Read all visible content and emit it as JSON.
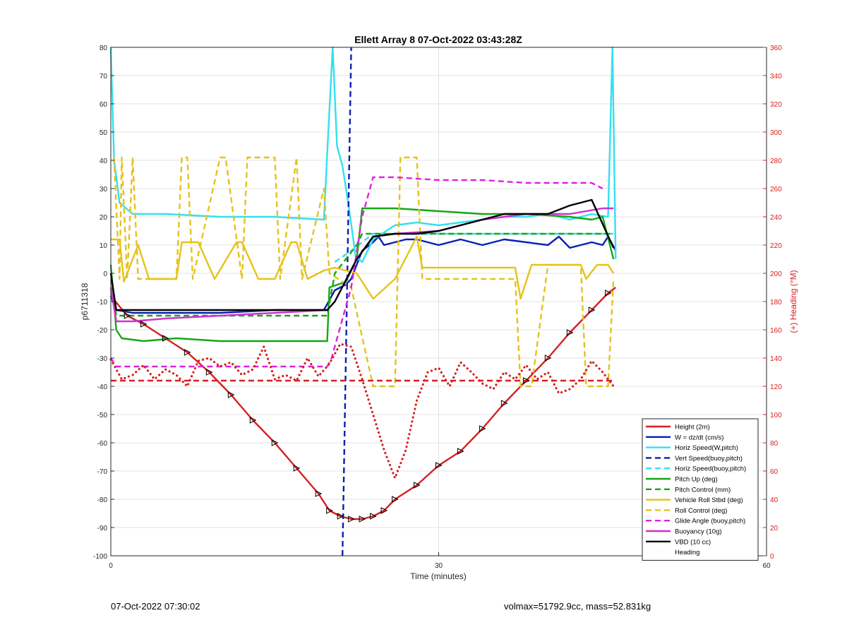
{
  "chart_data": {
    "type": "line",
    "title": "Ellett Array 8 07-Oct-2022 03:43:28Z",
    "xlabel": "Time (minutes)",
    "ylabel": "p6711318",
    "y2label": "(+) Heading (°M)",
    "xlim": [
      0,
      60
    ],
    "ylim": [
      -100,
      80
    ],
    "y2lim": [
      0,
      360
    ],
    "xticks": [
      "0",
      "30",
      "60"
    ],
    "yticks": [
      "80",
      "70",
      "60",
      "50",
      "40",
      "30",
      "20",
      "10",
      "0",
      "-10",
      "-20",
      "-30",
      "-40",
      "-50",
      "-60",
      "-70",
      "-80",
      "-90",
      "-100"
    ],
    "y2ticks": [
      "360",
      "340",
      "320",
      "300",
      "280",
      "260",
      "240",
      "220",
      "200",
      "180",
      "160",
      "140",
      "120",
      "100",
      "80",
      "60",
      "40",
      "20",
      "0"
    ],
    "grid": true,
    "legend_position": "bottom-right",
    "colors": {
      "height": "#d62020",
      "w": "#0a1fb5",
      "horiz": "#33e0f0",
      "pitch": "#16a616",
      "roll": "#e6c21a",
      "glide": "#e020e0",
      "buoyancy": "#d030d0",
      "vbd": "#000000",
      "heading": "#d62020",
      "right_axis": "#d62020"
    },
    "series": [
      {
        "name": "Height (2m)",
        "axis": "left",
        "color": "#d62020",
        "style": "solid",
        "x": [
          0,
          1.5,
          3,
          5,
          7,
          9,
          11,
          13,
          15,
          17,
          19,
          20,
          21,
          22,
          23,
          24,
          25,
          26,
          28,
          30,
          32,
          34,
          36,
          38,
          40,
          42,
          44,
          45.5,
          46.2
        ],
        "y": [
          -8,
          -15,
          -18,
          -23,
          -28,
          -35,
          -43,
          -52,
          -60,
          -69,
          -78,
          -84,
          -86,
          -87,
          -87,
          -86,
          -84,
          -80,
          -75,
          -68,
          -63,
          -55,
          -46,
          -38,
          -30,
          -21,
          -13,
          -7,
          -5
        ]
      },
      {
        "name": "W = dz/dt (cm/s)",
        "axis": "left",
        "color": "#0a1fb5",
        "style": "solid",
        "x": [
          0,
          0.5,
          2,
          5,
          10,
          15,
          19.5,
          20.5,
          21.5,
          22,
          23,
          24,
          24.5,
          25,
          26,
          27,
          28,
          29,
          30,
          32,
          34,
          36,
          38,
          40,
          41,
          42,
          44,
          45,
          45.5,
          46.2
        ],
        "y": [
          -8,
          -13,
          -14,
          -14,
          -14,
          -13,
          -13,
          -6,
          -4,
          -2,
          8,
          11,
          13,
          10,
          11,
          12,
          12,
          11,
          10,
          12,
          10,
          12,
          11,
          10,
          13,
          9,
          11,
          10,
          13,
          8
        ]
      },
      {
        "name": "Horiz Speed(W,pitch)",
        "axis": "left",
        "color": "#33e0f0",
        "style": "solid",
        "x": [
          0,
          0.3,
          0.8,
          2,
          5,
          10,
          15,
          19.5,
          19.9,
          20.3,
          20.7,
          21.2,
          21.8,
          22.4,
          23,
          24,
          26,
          28,
          30,
          32,
          34,
          36,
          38,
          40,
          42,
          44,
          45.5,
          45.9,
          46.2
        ],
        "y": [
          80,
          40,
          25,
          21,
          21,
          20,
          20,
          19,
          50,
          80,
          45,
          38,
          23,
          6,
          4,
          12,
          17,
          18,
          17,
          18,
          19,
          20,
          20,
          21,
          19,
          21,
          20,
          80,
          5
        ]
      },
      {
        "name": "Vert Speed(buoy,pitch)",
        "axis": "left",
        "color": "#0a1fb5",
        "style": "dashed",
        "x": [
          21.2,
          22
        ],
        "y": [
          -100,
          80
        ]
      },
      {
        "name": "Horiz Speed(buoy,pitch)",
        "axis": "left",
        "color": "#33e0f0",
        "style": "dashed",
        "x": [
          20.5,
          22,
          24,
          46
        ],
        "y": [
          4,
          8,
          14,
          14
        ]
      },
      {
        "name": "Pitch Up (deg)",
        "axis": "left",
        "color": "#16a616",
        "style": "solid",
        "x": [
          0,
          0.5,
          1,
          3,
          6,
          10,
          15,
          19.8,
          20,
          21.5,
          22.5,
          23,
          26,
          30,
          34,
          38,
          42,
          44,
          45,
          46
        ],
        "y": [
          3,
          -20,
          -23,
          -24,
          -23,
          -24,
          -24,
          -24,
          -5,
          -3,
          5,
          23,
          23,
          22,
          21,
          21,
          20,
          19,
          20,
          5
        ]
      },
      {
        "name": "Pitch Control (mm)",
        "axis": "left",
        "color": "#16a616",
        "style": "dashed",
        "x": [
          0,
          0.5,
          19.8,
          20.5,
          22.5,
          23,
          46
        ],
        "y": [
          0,
          -15,
          -15,
          0,
          10,
          14,
          14
        ]
      },
      {
        "name": "Vehicle Roll Stbd (deg)",
        "axis": "left",
        "color": "#e6c21a",
        "style": "solid",
        "x": [
          0,
          0.8,
          1.2,
          2.5,
          3.5,
          6,
          6.5,
          8,
          9.5,
          11.5,
          12,
          13.5,
          15,
          16.5,
          17,
          18,
          19.5,
          20.5,
          22.5,
          24,
          26,
          28,
          28.5,
          37,
          37.5,
          38.5,
          40,
          43,
          43.5,
          44.5,
          45.5,
          46
        ],
        "y": [
          12,
          12,
          -3,
          10,
          -2,
          -2,
          11,
          11,
          -2,
          11,
          11,
          -2,
          -2,
          11,
          11,
          -2,
          1,
          2,
          0,
          -9,
          -2,
          13,
          2,
          2,
          -9,
          3,
          3,
          3,
          -2,
          3,
          3,
          0
        ]
      },
      {
        "name": "Roll Control (deg)",
        "axis": "left",
        "color": "#e6c21a",
        "style": "dashed",
        "x": [
          0.3,
          0.8,
          1,
          1.5,
          2,
          2.5,
          3,
          6,
          6.5,
          7,
          7.5,
          10,
          10.5,
          12,
          12.5,
          15,
          15.5,
          17,
          17.5,
          19.5,
          20,
          22,
          24,
          26,
          26.5,
          28,
          28.5,
          37,
          37.5,
          38.5,
          40,
          43,
          43.5,
          44.5,
          45.5,
          46
        ],
        "y": [
          41,
          -2,
          41,
          -2,
          41,
          -2,
          -2,
          -2,
          41,
          41,
          -2,
          41,
          41,
          -2,
          41,
          41,
          -2,
          41,
          -2,
          30,
          0,
          -5,
          -40,
          -40,
          41,
          41,
          -2,
          -2,
          -40,
          -40,
          3,
          3,
          -40,
          -40,
          -40,
          -2
        ]
      },
      {
        "name": "Glide Angle (buoy,pitch)",
        "axis": "left",
        "color": "#e020e0",
        "style": "dashed",
        "x": [
          0,
          0.5,
          2,
          5,
          10,
          15,
          19.8,
          20.2,
          22,
          23,
          24,
          26,
          30,
          34,
          38,
          42,
          44,
          45
        ],
        "y": [
          -30,
          -33,
          -33,
          -33,
          -33,
          -33,
          -33,
          -30,
          -5,
          20,
          34,
          34,
          33,
          33,
          32,
          32,
          32,
          30
        ]
      },
      {
        "name": "Buoyancy (10g)",
        "axis": "left",
        "color": "#d030d0",
        "style": "solid",
        "x": [
          0,
          0.5,
          2,
          5,
          10,
          15,
          19.8,
          20.5,
          22.5,
          24,
          26,
          30,
          34,
          38,
          42,
          45,
          46
        ],
        "y": [
          -5,
          -17,
          -17,
          -16,
          -15,
          -14,
          -13,
          -10,
          5,
          13,
          14,
          15,
          19,
          21,
          21,
          23,
          23
        ]
      },
      {
        "name": "VBD (10 cc)",
        "axis": "left",
        "color": "#000000",
        "style": "solid",
        "x": [
          0,
          0.5,
          2,
          5,
          10,
          15,
          19.8,
          20.5,
          22.5,
          24,
          26,
          28,
          30,
          32,
          34,
          36,
          38,
          40,
          42,
          44,
          46
        ],
        "y": [
          0,
          -13,
          -13,
          -13,
          -13,
          -13,
          -13,
          -10,
          5,
          13,
          14,
          14,
          15,
          17,
          19,
          21,
          21,
          21,
          24,
          26,
          9
        ]
      },
      {
        "name": "Heading",
        "axis": "right",
        "color": "#d62020",
        "style": "dotted",
        "x": [
          0,
          1,
          2,
          3,
          4,
          5,
          6,
          7,
          8,
          9,
          10,
          11,
          12,
          13,
          14,
          15,
          16,
          17,
          18,
          19,
          20,
          21,
          22,
          23,
          24,
          25,
          26,
          27,
          28,
          29,
          30,
          31,
          32,
          33,
          34,
          35,
          36,
          37,
          38,
          39,
          40,
          41,
          42,
          43,
          44,
          45,
          46
        ],
        "y": [
          139,
          125,
          128,
          135,
          125,
          132,
          128,
          120,
          138,
          140,
          134,
          137,
          128,
          132,
          148,
          125,
          128,
          124,
          140,
          127,
          136,
          150,
          148,
          125,
          100,
          75,
          55,
          75,
          110,
          130,
          133,
          120,
          137,
          130,
          122,
          118,
          130,
          125,
          135,
          125,
          130,
          115,
          118,
          125,
          138,
          130,
          120
        ]
      },
      {
        "name": "",
        "axis": "right",
        "color": "#d62020",
        "style": "dashed",
        "x": [
          0,
          46
        ],
        "y": [
          124,
          124
        ]
      }
    ]
  },
  "footer": {
    "timestamp": "07-Oct-2022 07:30:02",
    "info": "volmax=51792.9cc, mass=52.831kg"
  }
}
